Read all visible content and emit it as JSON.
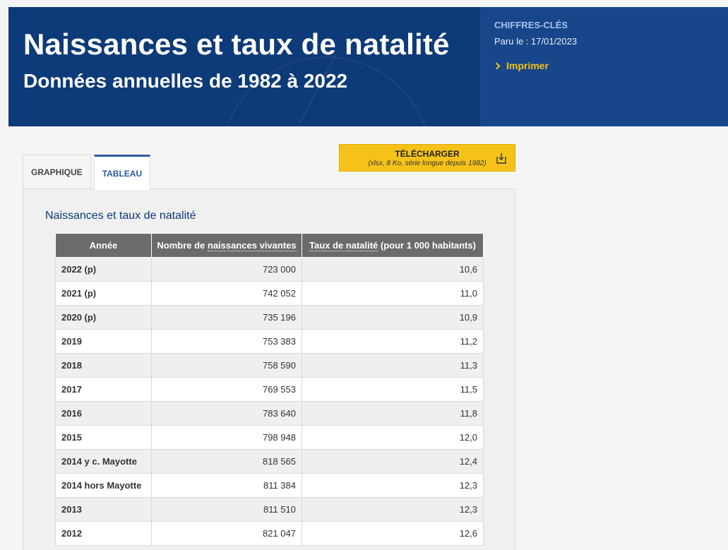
{
  "banner": {
    "title": "Naissances et taux de natalité",
    "subtitle": "Données annuelles de 1982 à 2022",
    "side_label": "CHIFFRES-CLÉS",
    "publication_date": "Paru le : 17/01/2023",
    "print_label": "Imprimer"
  },
  "tabs": [
    {
      "label": "GRAPHIQUE",
      "active": false
    },
    {
      "label": "TABLEAU",
      "active": true
    }
  ],
  "download": {
    "label": "TÉLÉCHARGER",
    "detail": "(xlsx, 8 Ko, série longue depuis 1982)"
  },
  "table": {
    "title": "Naissances et taux de natalité",
    "headers": {
      "year": "Année",
      "births_prefix": "Nombre de ",
      "births_term": "naissances vivantes",
      "rate_term": "Taux de natalité",
      "rate_suffix": " (pour 1 000 habitants)"
    },
    "rows": [
      {
        "year": "2022 (p)",
        "births": "723 000",
        "rate": "10,6"
      },
      {
        "year": "2021 (p)",
        "births": "742 052",
        "rate": "11,0"
      },
      {
        "year": "2020 (p)",
        "births": "735 196",
        "rate": "10,9"
      },
      {
        "year": "2019",
        "births": "753 383",
        "rate": "11,2"
      },
      {
        "year": "2018",
        "births": "758 590",
        "rate": "11,3"
      },
      {
        "year": "2017",
        "births": "769 553",
        "rate": "11,5"
      },
      {
        "year": "2016",
        "births": "783 640",
        "rate": "11,8"
      },
      {
        "year": "2015",
        "births": "798 948",
        "rate": "12,0"
      },
      {
        "year": "2014 y c. Mayotte",
        "births": "818 565",
        "rate": "12,4"
      },
      {
        "year": "2014 hors Mayotte",
        "births": "811 384",
        "rate": "12,3"
      },
      {
        "year": "2013",
        "births": "811 510",
        "rate": "12,3"
      },
      {
        "year": "2012",
        "births": "821 047",
        "rate": "12,6"
      }
    ]
  },
  "colors": {
    "banner_blue": "#0d3a78",
    "accent_yellow": "#f6c21a",
    "header_gray": "#6b6b6b"
  }
}
